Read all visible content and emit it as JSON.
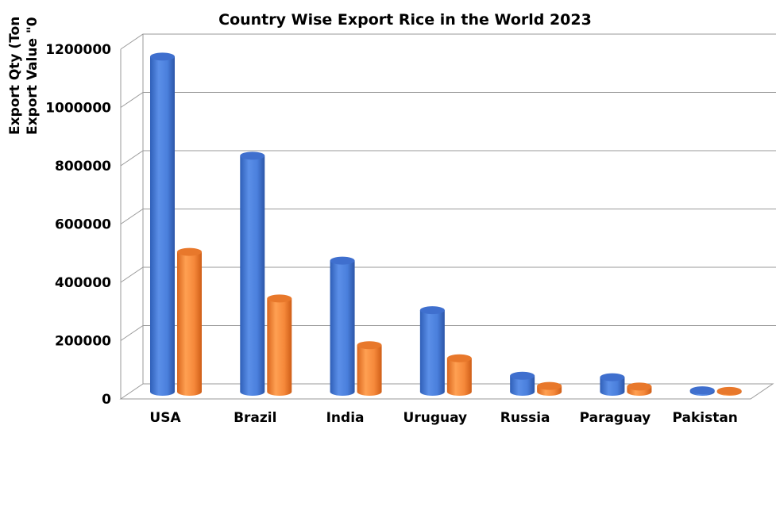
{
  "chart_data": {
    "type": "bar",
    "title": "Country Wise Export Rice in the World 2023",
    "ylabel_lines": [
      "Export Qty (Ton",
      "Export Value \"0"
    ],
    "xlabel": "",
    "categories": [
      "USA",
      "Brazil",
      "India",
      "Uruguay",
      "Russia",
      "Paraguay",
      "Pakistan"
    ],
    "series": [
      {
        "color": "#4a7fdc",
        "values": [
          1150000,
          810000,
          450000,
          280000,
          55000,
          50000,
          5000
        ]
      },
      {
        "color": "#f5883a",
        "values": [
          480000,
          320000,
          160000,
          115000,
          20000,
          18000,
          3000
        ]
      }
    ],
    "yticks": [
      "0",
      "200000",
      "400000",
      "600000",
      "800000",
      "1000000",
      "1200000"
    ],
    "ylim": [
      0,
      1200000
    ],
    "grid": true,
    "legend": "none"
  }
}
